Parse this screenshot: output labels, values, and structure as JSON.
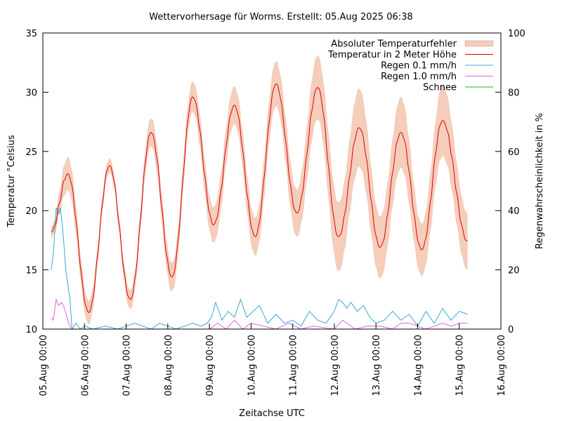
{
  "chart_data": {
    "type": "line",
    "title": "Wettervorhersage für Worms. Erstellt: 05.Aug 2025 06:38",
    "xlabel": "Zeitachse UTC",
    "ylabel_left": "Temperatur °Celsius",
    "ylabel_right": "Regenwahrscheinlichkeit in %",
    "x_unit": "days since 05.Aug 00:00",
    "xlim": [
      0,
      11
    ],
    "ylim_left": [
      10,
      35
    ],
    "ylim_right": [
      0,
      100
    ],
    "x_ticks": [
      {
        "x": 0,
        "label": "05.Aug 00:00"
      },
      {
        "x": 1,
        "label": "06.Aug 00:00"
      },
      {
        "x": 2,
        "label": "07.Aug 00:00"
      },
      {
        "x": 3,
        "label": "08.Aug 00:00"
      },
      {
        "x": 4,
        "label": "09.Aug 00:00"
      },
      {
        "x": 5,
        "label": "10.Aug 00:00"
      },
      {
        "x": 6,
        "label": "11.Aug 00:00"
      },
      {
        "x": 7,
        "label": "12.Aug 00:00"
      },
      {
        "x": 8,
        "label": "13.Aug 00:00"
      },
      {
        "x": 9,
        "label": "14.Aug 00:00"
      },
      {
        "x": 10,
        "label": "15.Aug 00:00"
      },
      {
        "x": 11,
        "label": "16.Aug 00:00"
      }
    ],
    "y_ticks_left": [
      10,
      15,
      20,
      25,
      30,
      35
    ],
    "y_ticks_right": [
      0,
      20,
      40,
      60,
      80,
      100
    ],
    "legend_position": "top-right",
    "legend": [
      {
        "name": "Absoluter Temperaturfehler",
        "color": "#f4cdbb",
        "style": "band"
      },
      {
        "name": "Temperatur in 2 Meter Höhe",
        "color": "#dd0000",
        "style": "line"
      },
      {
        "name": "Regen 0.1 mm/h",
        "color": "#3aa6d6",
        "style": "line"
      },
      {
        "name": "Regen 1.0 mm/h",
        "color": "#e060e0",
        "style": "line"
      },
      {
        "name": "Schnee",
        "color": "#00c000",
        "style": "line"
      }
    ],
    "temperature_extremes": {
      "x": [
        0.2,
        0.6,
        1.1,
        1.6,
        2.1,
        2.6,
        3.1,
        3.6,
        4.1,
        4.6,
        5.1,
        5.6,
        6.1,
        6.6,
        7.1,
        7.6,
        8.1,
        8.6,
        9.1,
        9.6,
        10.2
      ],
      "y": [
        18.2,
        23.1,
        11.4,
        23.8,
        12.5,
        26.6,
        14.4,
        29.6,
        18.8,
        28.9,
        17.8,
        30.7,
        19.8,
        30.4,
        17.8,
        27.0,
        16.9,
        26.6,
        16.7,
        27.6,
        17.4
      ],
      "err": [
        0.5,
        1.4,
        1.0,
        0.6,
        0.8,
        1.2,
        1.2,
        1.3,
        1.5,
        1.6,
        1.6,
        1.9,
        2.0,
        2.7,
        2.9,
        3.3,
        2.6,
        3.0,
        2.2,
        3.0,
        2.4
      ]
    },
    "rain_01_mmh": {
      "x": [
        0.2,
        0.25,
        0.32,
        0.38,
        0.42,
        0.46,
        0.5,
        0.55,
        0.6,
        0.65,
        0.7,
        0.8,
        0.9,
        1.0,
        1.2,
        1.5,
        1.8,
        2.0,
        2.2,
        2.4,
        2.6,
        2.8,
        3.0,
        3.2,
        3.4,
        3.6,
        3.8,
        3.95,
        4.05,
        4.15,
        4.3,
        4.45,
        4.6,
        4.75,
        4.9,
        5.05,
        5.2,
        5.4,
        5.6,
        5.8,
        6.0,
        6.2,
        6.4,
        6.6,
        6.8,
        7.0,
        7.1,
        7.2,
        7.3,
        7.4,
        7.55,
        7.7,
        7.85,
        8.0,
        8.2,
        8.4,
        8.6,
        8.8,
        9.0,
        9.2,
        9.4,
        9.6,
        9.8,
        10.0,
        10.2
      ],
      "y": [
        20,
        25,
        41,
        39,
        41,
        36,
        30,
        20,
        15,
        10,
        0,
        2,
        0,
        1,
        0,
        1,
        0,
        1,
        2,
        1,
        0,
        2,
        1,
        0,
        1,
        2,
        1,
        2,
        4,
        9,
        3,
        6,
        4,
        10,
        4,
        6,
        8,
        2,
        5,
        2,
        3,
        1,
        6,
        3,
        2,
        6,
        10,
        9,
        7,
        9,
        6,
        8,
        4,
        2,
        3,
        6,
        3,
        5,
        1,
        6,
        2,
        7,
        3,
        6,
        5
      ]
    },
    "rain_10_mmh": {
      "x": [
        0.2,
        0.25,
        0.32,
        0.38,
        0.45,
        0.52,
        0.6,
        0.65,
        0.7,
        4.0,
        4.2,
        4.4,
        4.6,
        4.8,
        5.0,
        5.3,
        5.6,
        5.9,
        6.2,
        6.5,
        7.0,
        7.2,
        7.5,
        7.8,
        8.1,
        8.4,
        8.6,
        8.8,
        9.0,
        9.2,
        9.4,
        9.6,
        9.8,
        10.0,
        10.2
      ],
      "y": [
        4,
        3,
        10,
        8,
        9,
        7,
        3,
        1,
        0,
        0,
        2,
        0,
        3,
        0,
        2,
        1,
        0,
        2,
        0,
        1,
        0,
        3,
        0,
        1,
        1,
        0,
        2,
        2,
        1,
        0,
        1,
        2,
        1,
        2,
        2
      ]
    },
    "snow": {
      "x": [],
      "y": []
    }
  }
}
